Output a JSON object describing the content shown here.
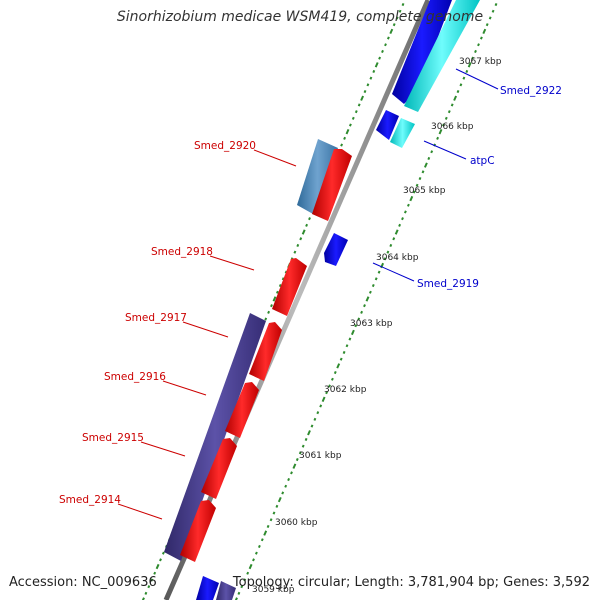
{
  "title": "Sinorhizobium medicae WSM419, complete genome",
  "footer": {
    "accession": "Accession: NC_009636",
    "topology": "Topology: circular; Length: 3,781,904 bp; Genes: 3,592"
  },
  "colors": {
    "backbone": "#808080",
    "tick": "#2e8b2e",
    "forward_gene": "#ff0000",
    "reverse_gene": "#0000ee",
    "reverse_cds_cyan": "#00e5e5",
    "steel_blue": "#4682b4",
    "indigo": "#483d8b",
    "forward_label": "#cc0000",
    "reverse_label": "#0000cc"
  },
  "scale_labels": [
    "3060 kbp",
    "3061 kbp",
    "3062 kbp",
    "3063 kbp",
    "3064 kbp",
    "3065 kbp",
    "3066 kbp",
    "3067 kbp",
    "3059 kbp"
  ],
  "gene_labels": [
    {
      "name": "Smed_2914",
      "strand": "forward"
    },
    {
      "name": "Smed_2915",
      "strand": "forward"
    },
    {
      "name": "Smed_2916",
      "strand": "forward"
    },
    {
      "name": "Smed_2917",
      "strand": "forward"
    },
    {
      "name": "Smed_2918",
      "strand": "forward"
    },
    {
      "name": "Smed_2920",
      "strand": "forward"
    },
    {
      "name": "Smed_2919",
      "strand": "reverse"
    },
    {
      "name": "atpC",
      "strand": "reverse"
    },
    {
      "name": "Smed_2922",
      "strand": "reverse"
    }
  ]
}
